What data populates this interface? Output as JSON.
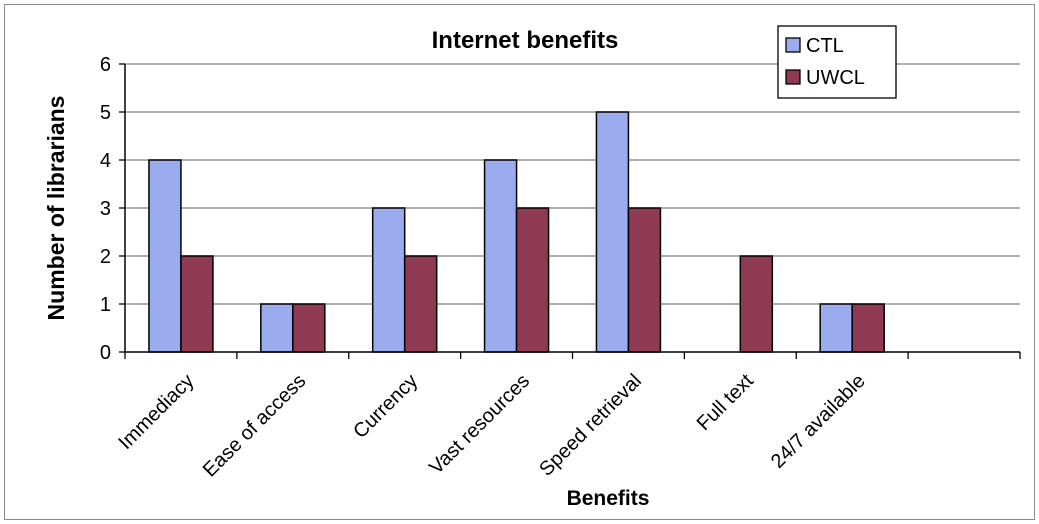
{
  "chart_data": {
    "type": "bar",
    "title": "Internet benefits",
    "xlabel": "Benefits",
    "ylabel": "Number of librarians",
    "categories": [
      "Immediacy",
      "Ease of access",
      "Currency",
      "Vast resources",
      "Speed retrieval",
      "Full text",
      "24/7 available",
      ""
    ],
    "series": [
      {
        "name": "CTL",
        "color": "#9aabee",
        "values": [
          4,
          1,
          3,
          4,
          5,
          0,
          1,
          0
        ]
      },
      {
        "name": "UWCL",
        "color": "#8f3a52",
        "values": [
          2,
          1,
          2,
          3,
          3,
          2,
          1,
          0
        ]
      }
    ],
    "ylim": [
      0,
      6
    ],
    "yticks": [
      0,
      1,
      2,
      3,
      4,
      5,
      6
    ],
    "grid": true,
    "legend": "top-right"
  }
}
